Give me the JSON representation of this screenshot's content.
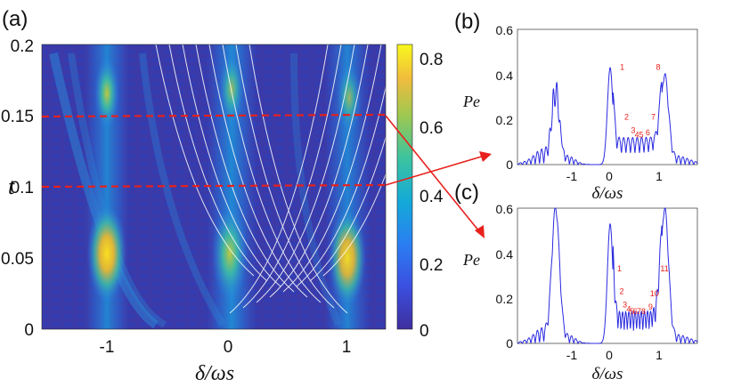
{
  "chart_data": [
    {
      "type": "heatmap",
      "panel_label": "(a)",
      "xlabel": "δ/ωs",
      "ylabel": "t",
      "xlim": [
        -1.35,
        1.35
      ],
      "ylim": [
        0,
        0.2
      ],
      "x_ticks": [
        "-1",
        "0",
        "1"
      ],
      "y_ticks": [
        "0",
        "0.05",
        "0.1",
        "0.15",
        "0.2"
      ],
      "colorbar": {
        "range": [
          0,
          0.83
        ],
        "ticks": [
          "0",
          "0.2",
          "0.4",
          "0.6",
          "0.8"
        ]
      },
      "bright_regions": [
        {
          "x": -1,
          "t": 0.055,
          "value": 0.75
        },
        {
          "x": 0,
          "t": 0.055,
          "value": 0.62
        },
        {
          "x": 1,
          "t": 0.055,
          "value": 0.72
        },
        {
          "x": -1,
          "t": 0.165,
          "value": 0.55
        },
        {
          "x": 0,
          "t": 0.17,
          "value": 0.5
        },
        {
          "x": 1,
          "t": 0.165,
          "value": 0.48
        }
      ],
      "cut_lines_t": [
        0.15,
        0.1
      ]
    },
    {
      "type": "line",
      "panel_label": "(b)",
      "xlabel": "δ/ωs",
      "ylabel": "Pe",
      "xlim": [
        -1.7,
        1.6
      ],
      "ylim": [
        0,
        0.6
      ],
      "x_ticks": [
        "-1",
        "0",
        "1"
      ],
      "y_ticks": [
        "0",
        "0.2",
        "0.4",
        "0.6"
      ],
      "peak_labels": [
        {
          "text": "1",
          "x": 0.18,
          "y": 0.42
        },
        {
          "text": "2",
          "x": 0.26,
          "y": 0.2
        },
        {
          "text": "3",
          "x": 0.38,
          "y": 0.14
        },
        {
          "text": "4",
          "x": 0.45,
          "y": 0.12
        },
        {
          "text": "5",
          "x": 0.53,
          "y": 0.12
        },
        {
          "text": "6",
          "x": 0.65,
          "y": 0.13
        },
        {
          "text": "7",
          "x": 0.75,
          "y": 0.2
        },
        {
          "text": "8",
          "x": 0.84,
          "y": 0.42
        }
      ]
    },
    {
      "type": "line",
      "panel_label": "(c)",
      "xlabel": "δ/ωs",
      "ylabel": "Pe",
      "xlim": [
        -1.7,
        1.6
      ],
      "ylim": [
        0,
        0.6
      ],
      "x_ticks": [
        "-1",
        "0",
        "1"
      ],
      "y_ticks": [
        "0",
        "0.2",
        "0.4",
        "0.6"
      ],
      "peak_labels": [
        {
          "text": "1",
          "x": 0.13,
          "y": 0.32
        },
        {
          "text": "2",
          "x": 0.17,
          "y": 0.22
        },
        {
          "text": "3",
          "x": 0.23,
          "y": 0.16
        },
        {
          "text": "4",
          "x": 0.3,
          "y": 0.14
        },
        {
          "text": "5",
          "x": 0.36,
          "y": 0.13
        },
        {
          "text": "6",
          "x": 0.42,
          "y": 0.13
        },
        {
          "text": "7",
          "x": 0.49,
          "y": 0.13
        },
        {
          "text": "8",
          "x": 0.57,
          "y": 0.13
        },
        {
          "text": "9",
          "x": 0.7,
          "y": 0.15
        },
        {
          "text": "10",
          "x": 0.73,
          "y": 0.21
        },
        {
          "text": "11",
          "x": 0.92,
          "y": 0.32
        }
      ]
    }
  ]
}
